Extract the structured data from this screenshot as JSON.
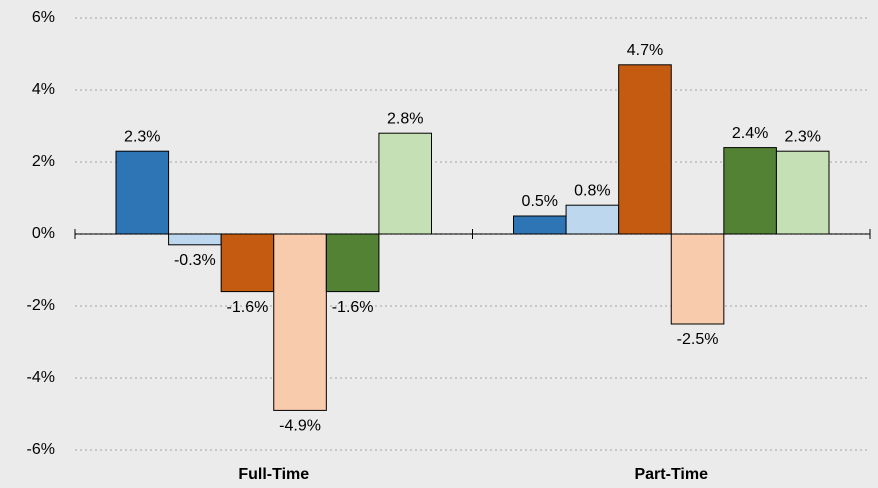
{
  "chart_data": {
    "type": "bar",
    "categories": [
      "Full-Time",
      "Part-Time"
    ],
    "series": [
      {
        "color": "#2e75b6",
        "values": [
          2.3,
          0.5
        ],
        "value_labels": [
          "2.3%",
          "0.5%"
        ]
      },
      {
        "color": "#bdd7ee",
        "values": [
          -0.3,
          0.8
        ],
        "value_labels": [
          "-0.3%",
          "0.8%"
        ]
      },
      {
        "color": "#c55a11",
        "values": [
          -1.6,
          4.7
        ],
        "value_labels": [
          "-1.6%",
          "4.7%"
        ]
      },
      {
        "color": "#f8cbad",
        "values": [
          -4.9,
          -2.5
        ],
        "value_labels": [
          "-4.9%",
          "-2.5%"
        ]
      },
      {
        "color": "#548235",
        "values": [
          -1.6,
          2.4
        ],
        "value_labels": [
          "-1.6%",
          "2.4%"
        ]
      },
      {
        "color": "#c5e0b4",
        "values": [
          2.8,
          2.3
        ],
        "value_labels": [
          "2.8%",
          "2.3%"
        ]
      }
    ],
    "ylim": [
      -6,
      6
    ],
    "yticks": [
      {
        "value": -6,
        "label": "-6%"
      },
      {
        "value": -4,
        "label": "-4%"
      },
      {
        "value": -2,
        "label": "-2%"
      },
      {
        "value": 0,
        "label": "0%"
      },
      {
        "value": 2,
        "label": "2%"
      },
      {
        "value": 4,
        "label": "4%"
      },
      {
        "value": 6,
        "label": "6%"
      }
    ],
    "grid": true
  }
}
